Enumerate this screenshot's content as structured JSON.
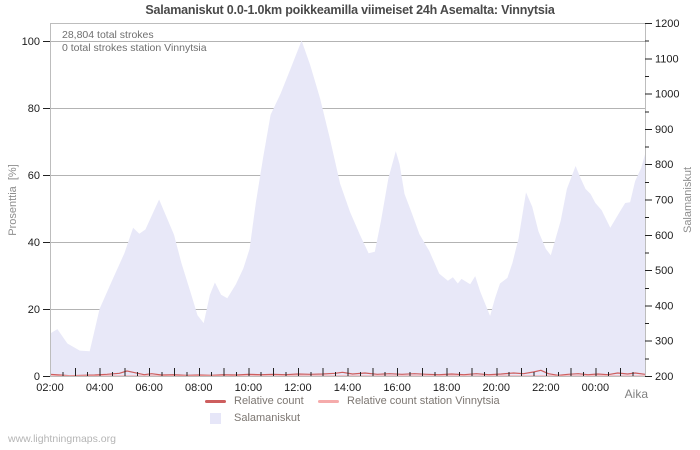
{
  "page": {
    "watermark": "www.lightningmaps.org"
  },
  "chart_data": {
    "type": "area",
    "title": "Salamaniskut 0.0-1.0km poikkeamilla viimeiset 24h Asemalta: Vinnytsia",
    "annotations": [
      "28,804 total strokes",
      "0 total strokes station Vinnytsia"
    ],
    "grid": "horizontal",
    "x_axis": {
      "label": "Aika",
      "range_hours": [
        2,
        26
      ],
      "tick_hours": [
        2,
        4,
        6,
        8,
        10,
        12,
        14,
        16,
        18,
        20,
        22,
        24
      ],
      "tick_labels": [
        "02:00",
        "04:00",
        "06:00",
        "08:00",
        "10:00",
        "12:00",
        "14:00",
        "16:00",
        "18:00",
        "20:00",
        "22:00",
        "00:00"
      ],
      "major_tick_every_h": 1,
      "minor_tick_every_h": 0.5
    },
    "y_left": {
      "label": "Prosenttia  [%]",
      "ticks": [
        0,
        20,
        40,
        60,
        80,
        100
      ],
      "range": [
        0,
        100
      ]
    },
    "y_right": {
      "label": "Salamaniskut",
      "ticks": [
        200,
        300,
        400,
        500,
        600,
        700,
        800,
        900,
        1000,
        1100,
        1200
      ],
      "minor_step": 50,
      "range": [
        200,
        1200
      ]
    },
    "series": [
      {
        "name": "Salamaniskut",
        "type": "area",
        "axis": "right_count",
        "color": "#e8e8f8",
        "points": [
          [
            2.0,
            320
          ],
          [
            2.3,
            333
          ],
          [
            2.7,
            292
          ],
          [
            3.2,
            272
          ],
          [
            3.6,
            270
          ],
          [
            4.0,
            390
          ],
          [
            4.5,
            470
          ],
          [
            5.0,
            548
          ],
          [
            5.35,
            620
          ],
          [
            5.6,
            603
          ],
          [
            5.85,
            615
          ],
          [
            6.4,
            700
          ],
          [
            7.0,
            600
          ],
          [
            7.3,
            520
          ],
          [
            7.7,
            430
          ],
          [
            7.95,
            372
          ],
          [
            8.2,
            350
          ],
          [
            8.45,
            430
          ],
          [
            8.65,
            465
          ],
          [
            8.9,
            430
          ],
          [
            9.15,
            420
          ],
          [
            9.5,
            460
          ],
          [
            9.8,
            505
          ],
          [
            10.05,
            560
          ],
          [
            10.3,
            690
          ],
          [
            10.6,
            820
          ],
          [
            10.9,
            940
          ],
          [
            11.3,
            1000
          ],
          [
            11.7,
            1070
          ],
          [
            12.15,
            1150
          ],
          [
            12.5,
            1080
          ],
          [
            12.9,
            985
          ],
          [
            13.3,
            870
          ],
          [
            13.7,
            745
          ],
          [
            14.1,
            665
          ],
          [
            14.5,
            600
          ],
          [
            14.85,
            548
          ],
          [
            15.1,
            552
          ],
          [
            15.35,
            640
          ],
          [
            15.65,
            760
          ],
          [
            15.95,
            837
          ],
          [
            16.1,
            800
          ],
          [
            16.3,
            716
          ],
          [
            16.6,
            660
          ],
          [
            16.9,
            602
          ],
          [
            17.3,
            554
          ],
          [
            17.7,
            490
          ],
          [
            18.05,
            470
          ],
          [
            18.25,
            480
          ],
          [
            18.45,
            462
          ],
          [
            18.6,
            475
          ],
          [
            18.95,
            460
          ],
          [
            19.15,
            483
          ],
          [
            19.35,
            440
          ],
          [
            19.75,
            370
          ],
          [
            19.95,
            420
          ],
          [
            20.15,
            462
          ],
          [
            20.45,
            478
          ],
          [
            20.65,
            520
          ],
          [
            20.9,
            590
          ],
          [
            21.2,
            720
          ],
          [
            21.45,
            680
          ],
          [
            21.7,
            610
          ],
          [
            22.0,
            560
          ],
          [
            22.2,
            542
          ],
          [
            22.6,
            640
          ],
          [
            22.85,
            730
          ],
          [
            23.2,
            795
          ],
          [
            23.4,
            761
          ],
          [
            23.6,
            730
          ],
          [
            23.8,
            716
          ],
          [
            24.0,
            690
          ],
          [
            24.25,
            670
          ],
          [
            24.6,
            620
          ],
          [
            25.0,
            667
          ],
          [
            25.2,
            690
          ],
          [
            25.4,
            692
          ],
          [
            25.6,
            752
          ],
          [
            25.85,
            790
          ],
          [
            26.0,
            828
          ]
        ]
      },
      {
        "name": "Relative count",
        "type": "line",
        "axis": "left_pct",
        "color": "#cd5e5e",
        "points": [
          [
            2.0,
            0.5
          ],
          [
            2.4,
            0.3
          ],
          [
            2.8,
            0.1
          ],
          [
            3.3,
            0.2
          ],
          [
            3.8,
            0.3
          ],
          [
            4.3,
            0.5
          ],
          [
            4.8,
            0.8
          ],
          [
            5.1,
            1.5
          ],
          [
            5.4,
            1.0
          ],
          [
            5.8,
            0.4
          ],
          [
            6.1,
            0.7
          ],
          [
            6.5,
            0.3
          ],
          [
            7.0,
            0.4
          ],
          [
            7.5,
            0.2
          ],
          [
            8.0,
            0.3
          ],
          [
            8.5,
            0.2
          ],
          [
            9.0,
            0.4
          ],
          [
            9.5,
            0.3
          ],
          [
            10.0,
            0.5
          ],
          [
            10.5,
            0.4
          ],
          [
            11.0,
            0.5
          ],
          [
            11.5,
            0.4
          ],
          [
            12.0,
            0.6
          ],
          [
            12.5,
            0.5
          ],
          [
            13.0,
            0.6
          ],
          [
            13.5,
            0.8
          ],
          [
            13.8,
            1.1
          ],
          [
            14.2,
            0.6
          ],
          [
            14.7,
            0.9
          ],
          [
            15.2,
            0.5
          ],
          [
            15.7,
            0.7
          ],
          [
            16.2,
            0.5
          ],
          [
            16.7,
            0.7
          ],
          [
            17.2,
            0.5
          ],
          [
            17.7,
            0.4
          ],
          [
            18.2,
            0.6
          ],
          [
            18.7,
            0.4
          ],
          [
            19.2,
            0.7
          ],
          [
            19.7,
            0.4
          ],
          [
            20.2,
            0.6
          ],
          [
            20.7,
            0.9
          ],
          [
            21.1,
            0.7
          ],
          [
            21.5,
            1.2
          ],
          [
            21.8,
            1.7
          ],
          [
            22.1,
            0.7
          ],
          [
            22.5,
            0.2
          ],
          [
            22.9,
            0.5
          ],
          [
            23.3,
            0.7
          ],
          [
            23.7,
            0.4
          ],
          [
            24.1,
            0.6
          ],
          [
            24.5,
            0.4
          ],
          [
            24.9,
            0.9
          ],
          [
            25.3,
            0.6
          ],
          [
            25.6,
            0.9
          ],
          [
            26.0,
            0.5
          ]
        ]
      },
      {
        "name": "Relative count station Vinnytsia",
        "type": "line",
        "axis": "left_pct",
        "color": "#f5abab",
        "points": [
          [
            2.0,
            0
          ],
          [
            26.0,
            0
          ]
        ]
      }
    ],
    "legend": {
      "position": "bottom",
      "entries": [
        {
          "label": "Relative count",
          "swatch": "line",
          "color": "#cd5e5e"
        },
        {
          "label": "Relative count station Vinnytsia",
          "swatch": "line",
          "color": "#f5abab"
        },
        {
          "label": "Salamaniskut",
          "swatch": "square",
          "color": "#e6e6f8"
        }
      ]
    }
  }
}
